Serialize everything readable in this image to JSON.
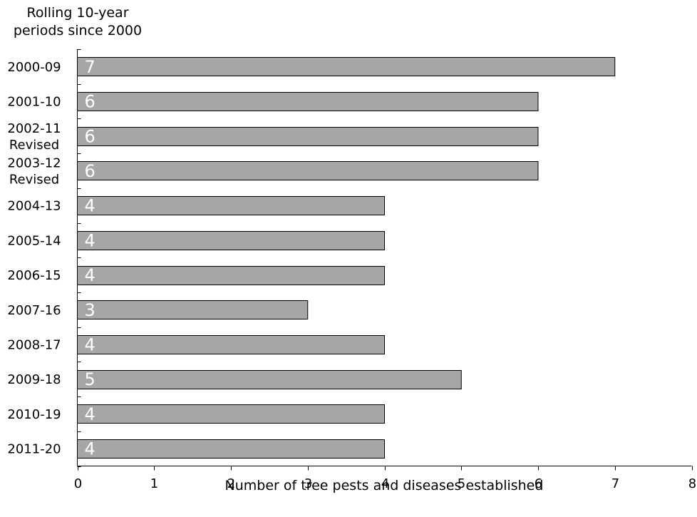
{
  "chart_data": {
    "type": "bar",
    "orientation": "horizontal",
    "ylabel": "Rolling 10-year periods since 2000",
    "xlabel": "Number of tree pests and diseases established",
    "categories": [
      "2000-09",
      "2001-10",
      "2002-11 Revised",
      "2003-12 Revised",
      "2004-13",
      "2005-14",
      "2006-15",
      "2007-16",
      "2008-17",
      "2009-18",
      "2010-19",
      "2011-20"
    ],
    "values": [
      7,
      6,
      6,
      6,
      4,
      4,
      4,
      3,
      4,
      5,
      4,
      4
    ],
    "xlim": [
      0,
      8
    ],
    "xticks": [
      0,
      1,
      2,
      3,
      4,
      5,
      6,
      7,
      8
    ],
    "grid": false,
    "data_labels": true,
    "colors": {
      "bar_fill": "#a6a6a6",
      "bar_stroke": "#000000",
      "label_text": "#ffffff"
    }
  }
}
